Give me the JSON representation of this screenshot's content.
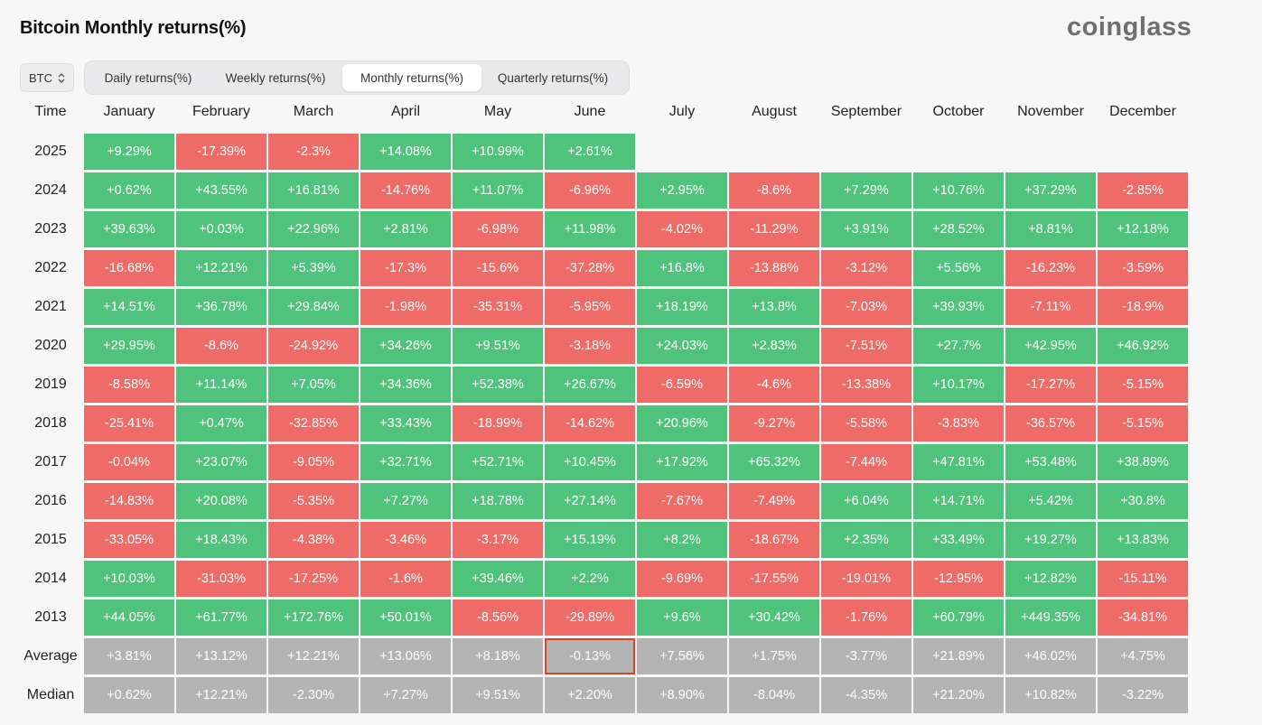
{
  "title": "Bitcoin Monthly returns(%)",
  "logo": "coinglass",
  "asset_select": {
    "value": "BTC",
    "icon": "up-down-chevron-icon"
  },
  "tabs": [
    {
      "label": "Daily returns(%)",
      "active": false
    },
    {
      "label": "Weekly returns(%)",
      "active": false
    },
    {
      "label": "Monthly returns(%)",
      "active": true
    },
    {
      "label": "Quarterly returns(%)",
      "active": false
    }
  ],
  "colors": {
    "positive": "#4fc27c",
    "negative": "#ee6b67",
    "summary": "#b3b3b3",
    "highlight_border": "#e0421f"
  },
  "chart_data": {
    "type": "heatmap",
    "row_header": "Time",
    "columns": [
      "January",
      "February",
      "March",
      "April",
      "May",
      "June",
      "July",
      "August",
      "September",
      "October",
      "November",
      "December"
    ],
    "rows": [
      {
        "label": "2025",
        "kind": "year",
        "values": [
          "+9.29%",
          "-17.39%",
          "-2.3%",
          "+14.08%",
          "+10.99%",
          "+2.61%",
          "",
          "",
          "",
          "",
          "",
          ""
        ]
      },
      {
        "label": "2024",
        "kind": "year",
        "values": [
          "+0.62%",
          "+43.55%",
          "+16.81%",
          "-14.76%",
          "+11.07%",
          "-6.96%",
          "+2.95%",
          "-8.6%",
          "+7.29%",
          "+10.76%",
          "+37.29%",
          "-2.85%"
        ]
      },
      {
        "label": "2023",
        "kind": "year",
        "values": [
          "+39.63%",
          "+0.03%",
          "+22.96%",
          "+2.81%",
          "-6.98%",
          "+11.98%",
          "-4.02%",
          "-11.29%",
          "+3.91%",
          "+28.52%",
          "+8.81%",
          "+12.18%"
        ]
      },
      {
        "label": "2022",
        "kind": "year",
        "values": [
          "-16.68%",
          "+12.21%",
          "+5.39%",
          "-17.3%",
          "-15.6%",
          "-37.28%",
          "+16.8%",
          "-13.88%",
          "-3.12%",
          "+5.56%",
          "-16.23%",
          "-3.59%"
        ]
      },
      {
        "label": "2021",
        "kind": "year",
        "values": [
          "+14.51%",
          "+36.78%",
          "+29.84%",
          "-1.98%",
          "-35.31%",
          "-5.95%",
          "+18.19%",
          "+13.8%",
          "-7.03%",
          "+39.93%",
          "-7.11%",
          "-18.9%"
        ]
      },
      {
        "label": "2020",
        "kind": "year",
        "values": [
          "+29.95%",
          "-8.6%",
          "-24.92%",
          "+34.26%",
          "+9.51%",
          "-3.18%",
          "+24.03%",
          "+2.83%",
          "-7.51%",
          "+27.7%",
          "+42.95%",
          "+46.92%"
        ]
      },
      {
        "label": "2019",
        "kind": "year",
        "values": [
          "-8.58%",
          "+11.14%",
          "+7.05%",
          "+34.36%",
          "+52.38%",
          "+26.67%",
          "-6.59%",
          "-4.6%",
          "-13.38%",
          "+10.17%",
          "-17.27%",
          "-5.15%"
        ]
      },
      {
        "label": "2018",
        "kind": "year",
        "values": [
          "-25.41%",
          "+0.47%",
          "-32.85%",
          "+33.43%",
          "-18.99%",
          "-14.62%",
          "+20.96%",
          "-9.27%",
          "-5.58%",
          "-3.83%",
          "-36.57%",
          "-5.15%"
        ]
      },
      {
        "label": "2017",
        "kind": "year",
        "values": [
          "-0.04%",
          "+23.07%",
          "-9.05%",
          "+32.71%",
          "+52.71%",
          "+10.45%",
          "+17.92%",
          "+65.32%",
          "-7.44%",
          "+47.81%",
          "+53.48%",
          "+38.89%"
        ]
      },
      {
        "label": "2016",
        "kind": "year",
        "values": [
          "-14.83%",
          "+20.08%",
          "-5.35%",
          "+7.27%",
          "+18.78%",
          "+27.14%",
          "-7.67%",
          "-7.49%",
          "+6.04%",
          "+14.71%",
          "+5.42%",
          "+30.8%"
        ]
      },
      {
        "label": "2015",
        "kind": "year",
        "values": [
          "-33.05%",
          "+18.43%",
          "-4.38%",
          "-3.46%",
          "-3.17%",
          "+15.19%",
          "+8.2%",
          "-18.67%",
          "+2.35%",
          "+33.49%",
          "+19.27%",
          "+13.83%"
        ]
      },
      {
        "label": "2014",
        "kind": "year",
        "values": [
          "+10.03%",
          "-31.03%",
          "-17.25%",
          "-1.6%",
          "+39.46%",
          "+2.2%",
          "-9.69%",
          "-17.55%",
          "-19.01%",
          "-12.95%",
          "+12.82%",
          "-15.11%"
        ]
      },
      {
        "label": "2013",
        "kind": "year",
        "values": [
          "+44.05%",
          "+61.77%",
          "+172.76%",
          "+50.01%",
          "-8.56%",
          "-29.89%",
          "+9.6%",
          "+30.42%",
          "-1.76%",
          "+60.79%",
          "+449.35%",
          "-34.81%"
        ]
      },
      {
        "label": "Average",
        "kind": "summary",
        "values": [
          "+3.81%",
          "+13.12%",
          "+12.21%",
          "+13.06%",
          "+8.18%",
          "-0.13%",
          "+7.56%",
          "+1.75%",
          "-3.77%",
          "+21.89%",
          "+46.02%",
          "+4.75%"
        ],
        "highlight_index": 5
      },
      {
        "label": "Median",
        "kind": "summary",
        "values": [
          "+0.62%",
          "+12.21%",
          "-2.30%",
          "+7.27%",
          "+9.51%",
          "+2.20%",
          "+8.90%",
          "-8.04%",
          "-4.35%",
          "+21.20%",
          "+10.82%",
          "-3.22%"
        ]
      }
    ]
  }
}
